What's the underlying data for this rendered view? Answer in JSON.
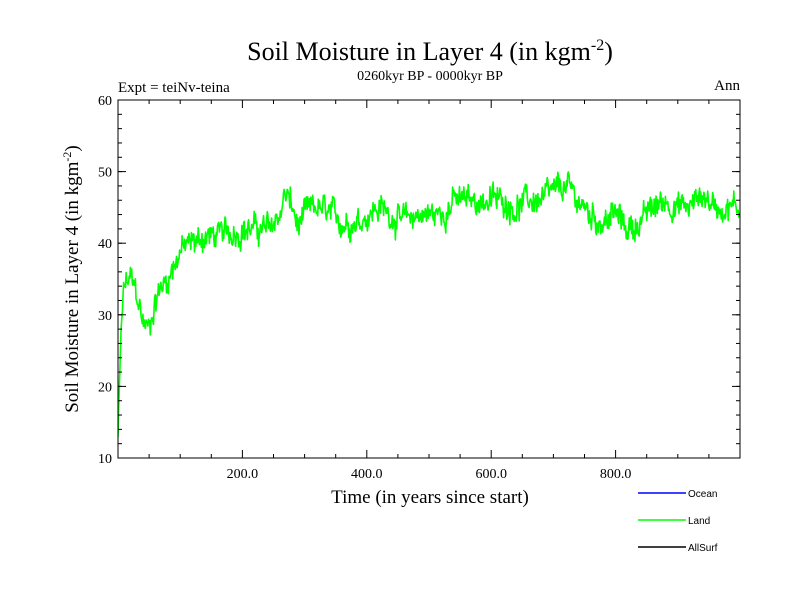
{
  "chart_data": {
    "type": "line",
    "title": "Soil Moisture in Layer 4 (in kgm",
    "title_sup": "-2",
    "title_close": ")",
    "subtitle": "0260kyr BP - 0000kyr BP",
    "left_label": "Expt = teiNv-teina",
    "right_label": "Ann",
    "xlabel": "Time (in years since start)",
    "ylabel": "Soil Moisture in Layer 4 (in kgm",
    "ylabel_sup": "-2",
    "ylabel_close": ")",
    "xlim": [
      0,
      1000
    ],
    "ylim": [
      10,
      60
    ],
    "x_ticks": [
      {
        "value": 200,
        "label": "200.0"
      },
      {
        "value": 400,
        "label": "400.0"
      },
      {
        "value": 600,
        "label": "600.0"
      },
      {
        "value": 800,
        "label": "800.0"
      }
    ],
    "y_ticks": [
      {
        "value": 10,
        "label": "10"
      },
      {
        "value": 20,
        "label": "20"
      },
      {
        "value": 30,
        "label": "30"
      },
      {
        "value": 40,
        "label": "40"
      },
      {
        "value": 50,
        "label": "50"
      },
      {
        "value": 60,
        "label": "60"
      }
    ],
    "legend": [
      {
        "name": "Ocean",
        "color": "#0000ff"
      },
      {
        "name": "Land",
        "color": "#00ff00"
      },
      {
        "name": "AllSurf",
        "color": "#000000"
      }
    ],
    "legend_position": "bottom-right",
    "series": [
      {
        "name": "Land",
        "color": "#00ff00",
        "trend": [
          [
            0,
            13
          ],
          [
            5,
            28
          ],
          [
            10,
            34
          ],
          [
            20,
            35
          ],
          [
            30,
            33
          ],
          [
            40,
            29
          ],
          [
            50,
            28
          ],
          [
            60,
            32
          ],
          [
            70,
            34
          ],
          [
            80,
            35
          ],
          [
            90,
            37
          ],
          [
            100,
            39
          ],
          [
            120,
            40
          ],
          [
            140,
            41
          ],
          [
            160,
            41
          ],
          [
            180,
            41.5
          ],
          [
            200,
            42
          ],
          [
            220,
            42
          ],
          [
            240,
            42
          ],
          [
            260,
            44
          ],
          [
            270,
            47
          ],
          [
            280,
            45
          ],
          [
            290,
            42
          ],
          [
            300,
            44
          ],
          [
            320,
            45
          ],
          [
            340,
            44
          ],
          [
            360,
            43
          ],
          [
            380,
            43
          ],
          [
            400,
            44
          ],
          [
            420,
            45
          ],
          [
            440,
            44
          ],
          [
            460,
            43
          ],
          [
            480,
            44
          ],
          [
            500,
            44
          ],
          [
            520,
            44
          ],
          [
            540,
            46
          ],
          [
            560,
            46
          ],
          [
            580,
            46
          ],
          [
            600,
            46
          ],
          [
            620,
            46
          ],
          [
            640,
            45
          ],
          [
            660,
            46
          ],
          [
            680,
            46
          ],
          [
            700,
            47
          ],
          [
            720,
            48
          ],
          [
            740,
            46
          ],
          [
            760,
            44
          ],
          [
            780,
            43
          ],
          [
            800,
            44
          ],
          [
            820,
            42
          ],
          [
            840,
            43
          ],
          [
            860,
            45
          ],
          [
            880,
            46
          ],
          [
            900,
            45
          ],
          [
            920,
            45
          ],
          [
            940,
            47
          ],
          [
            960,
            45
          ],
          [
            980,
            45
          ],
          [
            1000,
            45
          ]
        ],
        "noise_amplitude": 2.6
      }
    ]
  }
}
